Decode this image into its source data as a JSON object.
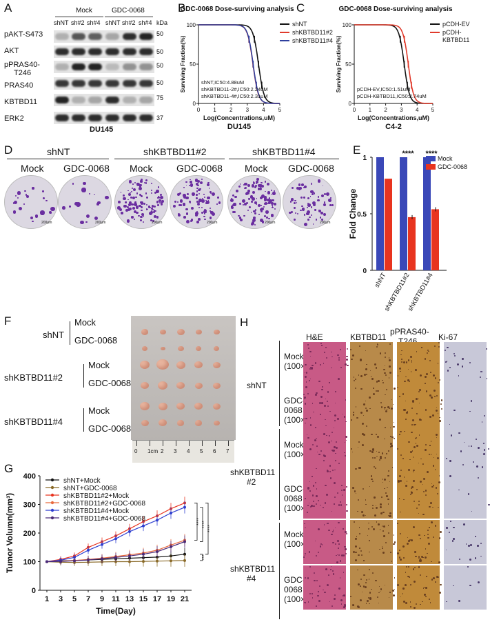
{
  "panels": {
    "A": "A",
    "B": "B",
    "C": "C",
    "D": "D",
    "E": "E",
    "F": "F",
    "G": "G",
    "H": "H"
  },
  "panelA": {
    "groups": [
      "Mock",
      "GDC-0068"
    ],
    "lanes": [
      "shNT",
      "sh#2",
      "sh#4",
      "shNT",
      "sh#2",
      "sh#4"
    ],
    "kda": "kDa",
    "rows": [
      {
        "label": "pAKT-S473",
        "marker": "50",
        "intensity": [
          0.25,
          0.7,
          0.65,
          0.3,
          0.9,
          0.95
        ]
      },
      {
        "label": "AKT",
        "marker": "50",
        "intensity": [
          0.9,
          0.9,
          0.9,
          0.9,
          0.9,
          0.9
        ]
      },
      {
        "label": "pPRAS40-\nT246",
        "marker": "50",
        "intensity": [
          0.25,
          0.95,
          0.95,
          0.2,
          0.4,
          0.4
        ]
      },
      {
        "label": "PRAS40",
        "marker": "50",
        "intensity": [
          0.85,
          0.85,
          0.85,
          0.85,
          0.85,
          0.85
        ]
      },
      {
        "label": "KBTBD11",
        "marker": "75",
        "intensity": [
          0.95,
          0.25,
          0.3,
          0.9,
          0.25,
          0.3
        ]
      },
      {
        "label": "ERK2",
        "marker": "37",
        "intensity": [
          0.9,
          0.9,
          0.9,
          0.9,
          0.9,
          0.9
        ]
      }
    ],
    "pPRAS_line1": "pPRAS40-",
    "pPRAS_line2": "T246",
    "cell_line": "DU145"
  },
  "chart_data": [
    {
      "type": "line",
      "title": "GDC-0068 Dose-surviving analysis",
      "xlabel": "Log(Concentrations,uM)",
      "ylabel": "Surviving Fraction(%)",
      "cell_line": "DU145",
      "xlim": [
        0,
        5
      ],
      "ylim": [
        0,
        100
      ],
      "xticks": [
        "0",
        "1",
        "2",
        "3",
        "4",
        "5"
      ],
      "yticks": [
        "0",
        "50",
        "100"
      ],
      "legend": [
        "shNT",
        "shKBTBD11#2",
        "shKBTBD11#4"
      ],
      "colors": [
        "#111111",
        "#e03b2c",
        "#2e3f9e"
      ],
      "ic50": [
        3.69,
        3.35,
        3.36
      ],
      "annotations": [
        "shNT,IC50:4.88uM",
        "shKBTBD11-2#,IC50:2.24uM",
        "shKBTBD11-4#,IC50:2.31uM"
      ]
    },
    {
      "type": "line",
      "title": "GDC-0068 Dose-surviving analysis",
      "xlabel": "Log(Concentrations,uM)",
      "ylabel": "Surviving Fraction(%)",
      "cell_line": "C4-2",
      "xlim": [
        0,
        5
      ],
      "ylim": [
        0,
        100
      ],
      "xticks": [
        "0",
        "1",
        "2",
        "3",
        "4",
        "5"
      ],
      "yticks": [
        "0",
        "50",
        "100"
      ],
      "legend": [
        "pCDH-EV",
        "pCDH-\nKBTBD11"
      ],
      "legend_lines": [
        [
          "pCDH-EV"
        ],
        [
          "pCDH-",
          "KBTBD11"
        ]
      ],
      "colors": [
        "#111111",
        "#e03b2c"
      ],
      "ic50": [
        3.18,
        3.44
      ],
      "annotations": [
        "pCDH-EV,IC50:1.51uM",
        "pCDH-KBTBD11,IC50:2.74uM"
      ]
    },
    {
      "type": "bar",
      "ylabel": "Fold Change",
      "categories": [
        "shNT",
        "shKBTBD11#2",
        "shKBTBD11#4"
      ],
      "series": [
        {
          "name": "Mock",
          "values": [
            1,
            1,
            1
          ]
        },
        {
          "name": "GDC-0068",
          "values": [
            0.81,
            0.47,
            0.54
          ]
        }
      ],
      "colors": [
        "#3a48b8",
        "#e8341f"
      ],
      "ylim": [
        0,
        1
      ],
      "yticks": [
        "0",
        "0.5",
        "1"
      ],
      "significance": [
        "",
        "****",
        "****"
      ]
    },
    {
      "type": "line",
      "xlabel": "Time(Day)",
      "ylabel": "Tumor Volumn(mm³)",
      "x": [
        1,
        3,
        5,
        7,
        9,
        11,
        13,
        15,
        17,
        19,
        21
      ],
      "xticks": [
        "1",
        "3",
        "5",
        "7",
        "9",
        "11",
        "13",
        "15",
        "17",
        "19",
        "21"
      ],
      "yticks": [
        "0",
        "100",
        "200",
        "300",
        "400"
      ],
      "ylim": [
        0,
        400
      ],
      "series": [
        {
          "name": "shNT+Mock",
          "color": "#111111",
          "values": [
            100,
            103,
            104,
            106,
            108,
            110,
            112,
            114,
            116,
            120,
            126
          ]
        },
        {
          "name": "shNT+GDC-0068",
          "color": "#8a6a28",
          "values": [
            100,
            98,
            97,
            98,
            99,
            100,
            100,
            101,
            102,
            103,
            104
          ]
        },
        {
          "name": "shKBTBD11#2+Mock",
          "color": "#e8341f",
          "values": [
            100,
            108,
            120,
            150,
            170,
            190,
            215,
            240,
            260,
            285,
            305
          ]
        },
        {
          "name": "shKBTBD11#2+GDC-0068",
          "color": "#e86a3f",
          "values": [
            100,
            102,
            104,
            108,
            112,
            118,
            124,
            130,
            140,
            158,
            175
          ]
        },
        {
          "name": "shKBTBD11#4+Mock",
          "color": "#2e3fd0",
          "values": [
            100,
            105,
            115,
            140,
            160,
            180,
            205,
            225,
            245,
            270,
            290
          ]
        },
        {
          "name": "shKBTBD11#4+GDC-0068",
          "color": "#4a2a78",
          "values": [
            100,
            101,
            103,
            106,
            110,
            115,
            120,
            126,
            135,
            152,
            170
          ]
        }
      ],
      "significance": [
        "****",
        "****",
        "****",
        "***"
      ]
    }
  ],
  "panelD": {
    "groups": [
      "shNT",
      "shKBTBD11#2",
      "shKBTBD11#4"
    ],
    "sublabels": [
      "Mock",
      "GDC-0068",
      "Mock",
      "GDC-0068",
      "Mock",
      "GDC-0068"
    ],
    "density": [
      22,
      16,
      110,
      95,
      115,
      70
    ],
    "scalebar": "200μm"
  },
  "panelF": {
    "groups": [
      "shNT",
      "shKBTBD11#2",
      "shKBTBD11#4"
    ],
    "treatments": [
      "Mock",
      "GDC-0068"
    ],
    "ruler": [
      "0",
      "1cm",
      "2",
      "3",
      "4",
      "5",
      "6",
      "7"
    ]
  },
  "panelH": {
    "columns": [
      "H&E",
      "KBTBD11",
      "pPRAS40-\nT246",
      "Ki-67"
    ],
    "col_line1": [
      "H&E",
      "KBTBD11",
      "pPRAS40-",
      "Ki-67"
    ],
    "col_line2": [
      "",
      "",
      "T246",
      ""
    ],
    "groups": [
      "shNT",
      "shKBTBD11\n#2",
      "shKBTBD11\n#4"
    ],
    "group_line1": [
      "shNT",
      "shKBTBD11",
      "shKBTBD11"
    ],
    "group_line2": [
      "",
      "#2",
      "#4"
    ],
    "rows": [
      {
        "l1": "Mock",
        "l2": "(100×)",
        "l3": ""
      },
      {
        "l1": "GDC-",
        "l2": "0068",
        "l3": "(100×)"
      },
      {
        "l1": "Mock",
        "l2": "(100×)",
        "l3": ""
      },
      {
        "l1": "GDC-",
        "l2": "0068",
        "l3": "(100×)"
      },
      {
        "l1": "Mock",
        "l2": "(100×)",
        "l3": ""
      },
      {
        "l1": "GDC-",
        "l2": "0068",
        "l3": "(100×)"
      }
    ],
    "colors": [
      "#c85a86",
      "#b88a4a",
      "#c08a3a",
      "#c8c8d8"
    ]
  }
}
